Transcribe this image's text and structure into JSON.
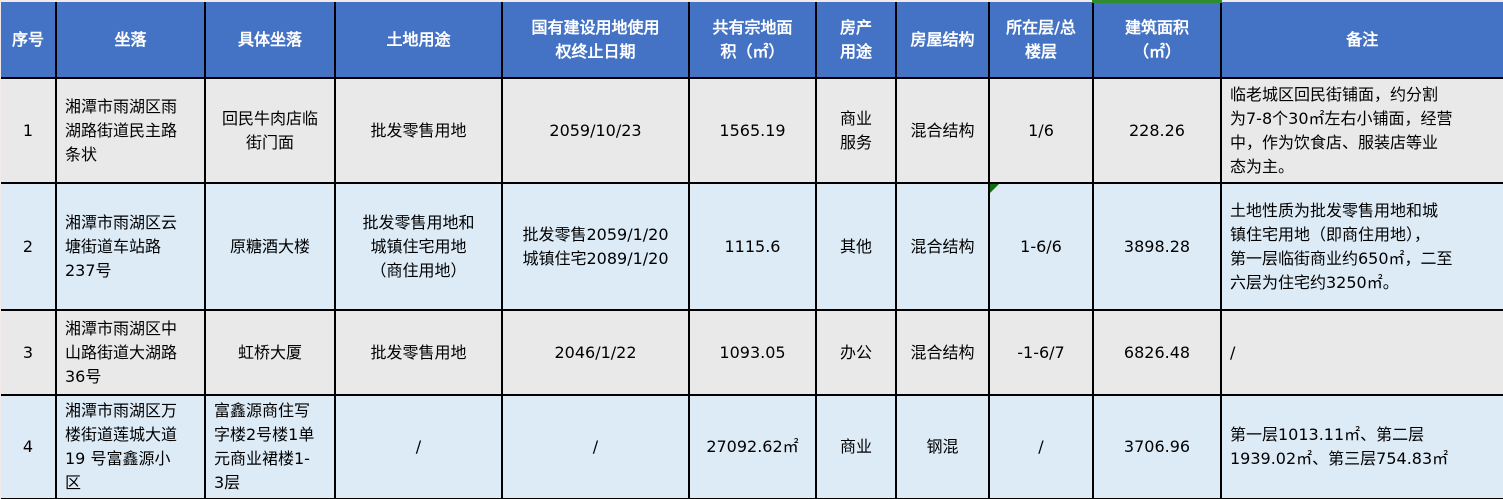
{
  "table": {
    "columns": [
      {
        "key": "index",
        "label": "序号"
      },
      {
        "key": "location",
        "label": "坐落"
      },
      {
        "key": "specific-location",
        "label": "具体坐落"
      },
      {
        "key": "land-use",
        "label": "土地用途"
      },
      {
        "key": "land-right-end-date",
        "label": "国有建设用地使用\n权终止日期"
      },
      {
        "key": "parcel-area",
        "label": "共有宗地面\n积（㎡）"
      },
      {
        "key": "property-use",
        "label": "房产\n用途"
      },
      {
        "key": "building-structure",
        "label": "房屋结构"
      },
      {
        "key": "floor",
        "label": "所在层/总\n楼层"
      },
      {
        "key": "building-area",
        "label": "建筑面积\n（㎡）"
      },
      {
        "key": "remarks",
        "label": "备注"
      }
    ],
    "rows": [
      {
        "cells": [
          "1",
          "湘潭市雨湖区雨\n湖路街道民主路\n条状",
          "回民牛肉店临\n街门面",
          "批发零售用地",
          "2059/10/23",
          "1565.19",
          "商业\n服务",
          "混合结构",
          "1/6",
          "228.26",
          "临老城区回民街铺面，约分割\n为7-8个30㎡左右小铺面，经营\n中，作为饮食店、服装店等业\n态为主。"
        ]
      },
      {
        "cells": [
          "2",
          "湘潭市雨湖区云\n塘街道车站路\n237号",
          "原糖酒大楼",
          "批发零售用地和\n城镇住宅用地\n（商住用地）",
          "批发零售2059/1/20\n城镇住宅2089/1/20",
          "1115.6",
          "其他",
          "混合结构",
          "1-6/6",
          "3898.28",
          "土地性质为批发零售用地和城\n镇住宅用地（即商住用地），\n第一层临街商业约650㎡，二至\n六层为住宅约3250㎡。"
        ]
      },
      {
        "cells": [
          "3",
          "湘潭市雨湖区中\n山路街道大湖路\n36号",
          "虹桥大厦",
          "批发零售用地",
          "2046/1/22",
          "1093.05",
          "办公",
          "混合结构",
          "-1-6/7",
          "6826.48",
          "/"
        ]
      },
      {
        "cells": [
          "4",
          "湘潭市雨湖区万\n楼街道莲城大道\n19 号富鑫源小\n区",
          "富鑫源商住写\n字楼2号楼1单\n元商业裙楼1-\n3层",
          "/",
          "/",
          "27092.62㎡",
          "商业",
          "钢混",
          "/",
          "3706.96",
          "第一层1013.11㎡、第二层\n1939.02㎡、第三层754.83㎡"
        ]
      }
    ]
  },
  "indicators": {
    "error_triangle": {
      "row": 2,
      "column": 9,
      "meaning": "cell-error-indicator"
    },
    "green_top_bar": {
      "column": 10,
      "meaning": "column-top-marker"
    }
  },
  "colors": {
    "header_bg": "#4472C4",
    "header_text": "#FFFFFF",
    "row_odd_bg": "#E9E9E9",
    "row_even_bg": "#DDEBF7",
    "border": "#000000",
    "marker_green": "#2E8B2E",
    "triangle_green": "#0B6E0B"
  }
}
